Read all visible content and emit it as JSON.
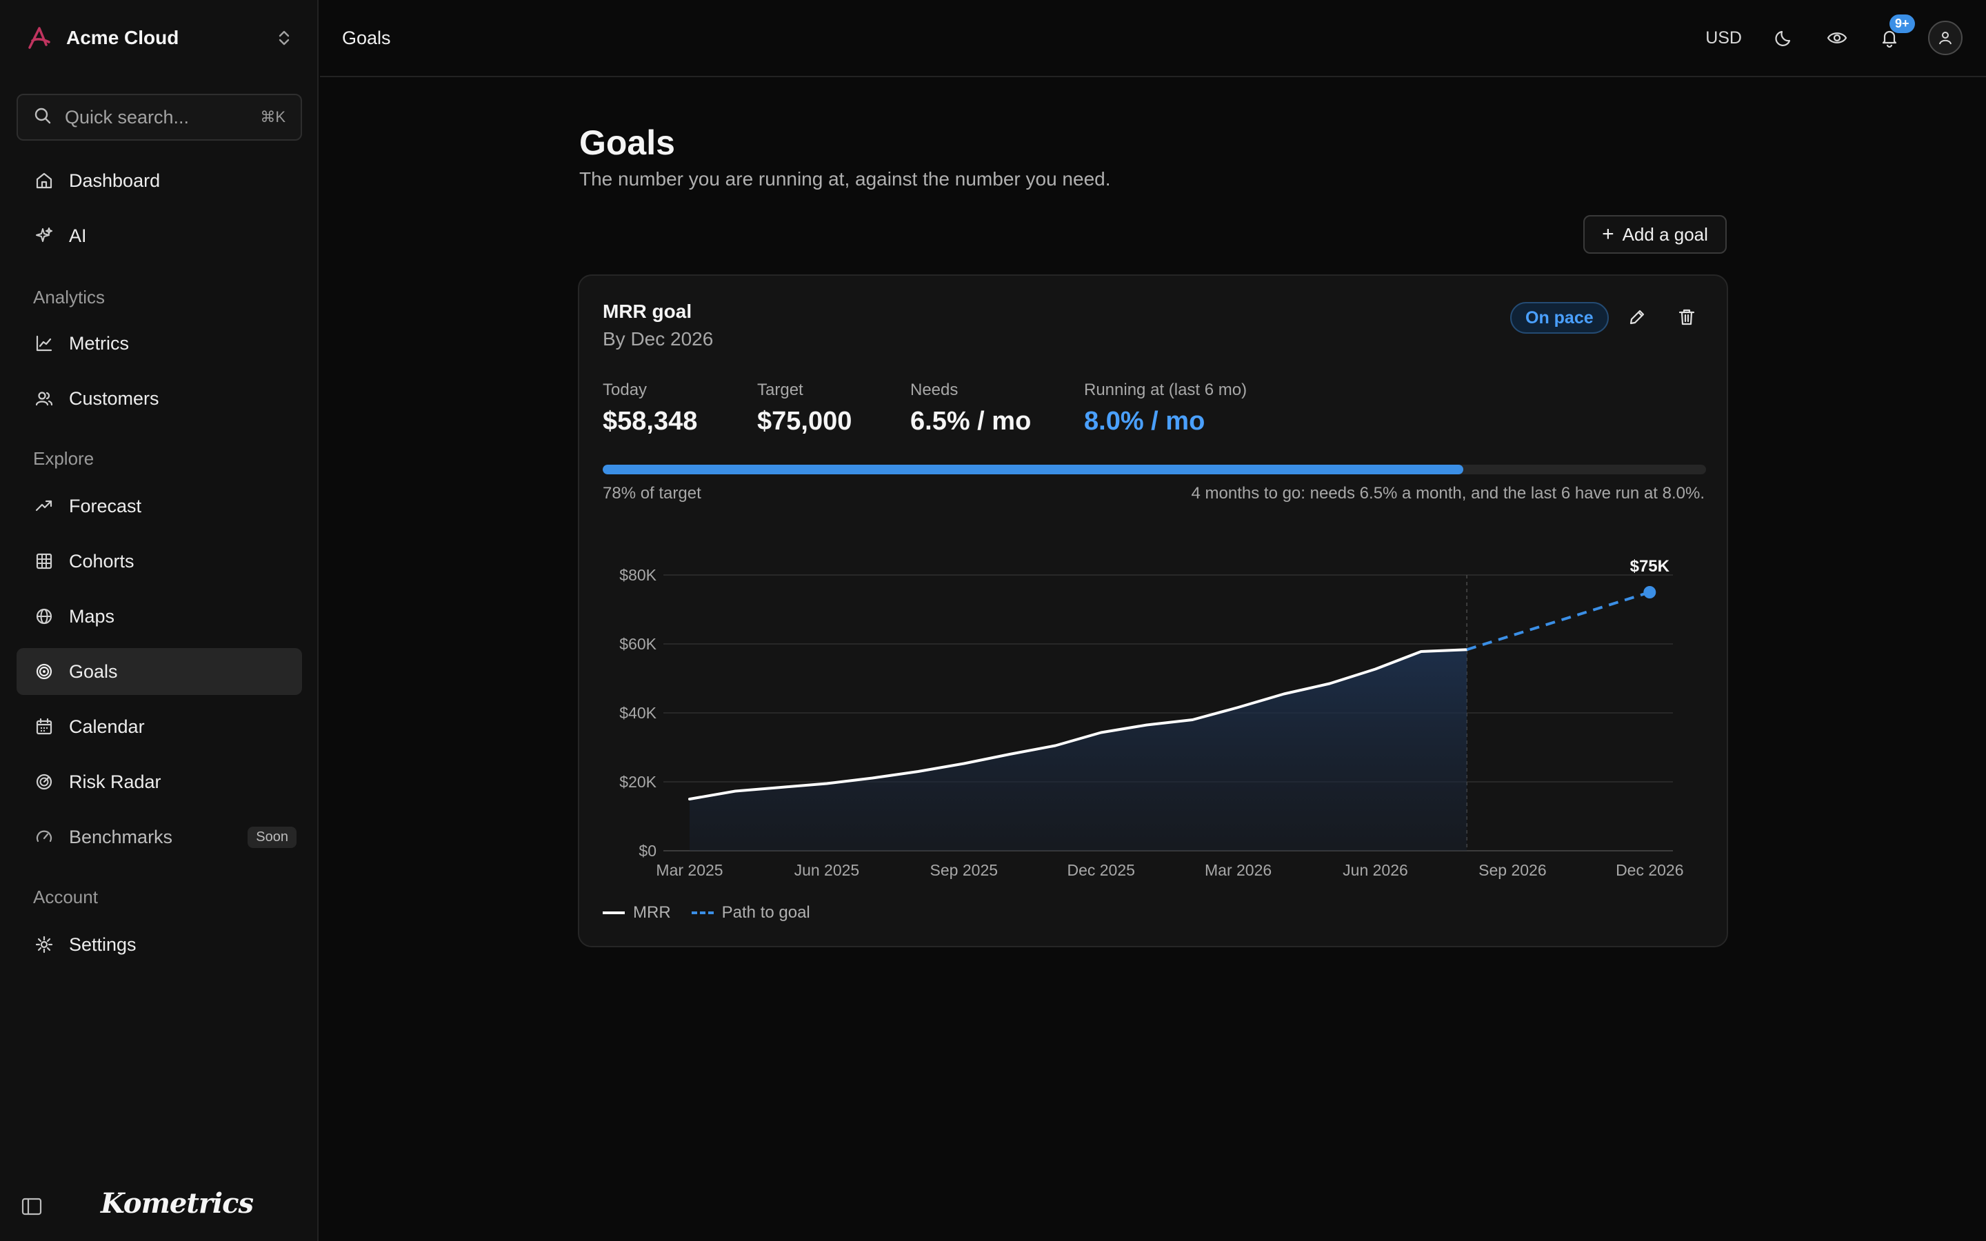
{
  "app": {
    "name": "Acme Cloud",
    "wordmark": "Kometrics"
  },
  "search": {
    "placeholder": "Quick search...",
    "shortcut": "⌘K"
  },
  "sidebar": {
    "top": [
      {
        "label": "Dashboard",
        "icon": "home-icon"
      },
      {
        "label": "AI",
        "icon": "sparkles-icon"
      }
    ],
    "sections": [
      {
        "title": "Analytics",
        "items": [
          {
            "label": "Metrics",
            "icon": "line-chart-icon"
          },
          {
            "label": "Customers",
            "icon": "users-icon"
          }
        ]
      },
      {
        "title": "Explore",
        "items": [
          {
            "label": "Forecast",
            "icon": "trending-up-icon"
          },
          {
            "label": "Cohorts",
            "icon": "grid-icon"
          },
          {
            "label": "Maps",
            "icon": "globe-icon"
          },
          {
            "label": "Goals",
            "icon": "target-icon",
            "active": true
          },
          {
            "label": "Calendar",
            "icon": "calendar-icon"
          },
          {
            "label": "Risk Radar",
            "icon": "radar-icon"
          },
          {
            "label": "Benchmarks",
            "icon": "gauge-icon",
            "badge": "Soon"
          }
        ]
      },
      {
        "title": "Account",
        "items": [
          {
            "label": "Settings",
            "icon": "gear-icon"
          }
        ]
      }
    ]
  },
  "header": {
    "breadcrumb": "Goals",
    "currency": "USD",
    "notifications": "9+"
  },
  "page": {
    "title": "Goals",
    "subtitle": "The number you are running at, against the number you need.",
    "add_label": "Add a goal"
  },
  "goal": {
    "name": "MRR goal",
    "by": "By Dec 2026",
    "status": "On pace",
    "stats": [
      {
        "key": "Today",
        "value": "$58,348"
      },
      {
        "key": "Target",
        "value": "$75,000"
      },
      {
        "key": "Needs",
        "value": "6.5% / mo"
      },
      {
        "key": "Running at (last 6 mo)",
        "value": "8.0% / mo",
        "highlight": true
      }
    ],
    "progress_fraction": 0.78,
    "progress_label": "78% of target",
    "progress_note": "4 months to go: needs 6.5% a month, and the last 6 have run at 8.0%."
  },
  "colors": {
    "accent": "#3b8fe6",
    "accent_text": "#4aa0ff",
    "bg": "#0a0a0a",
    "card": "#141414"
  },
  "chart_data": {
    "type": "line",
    "x_ticks": [
      "Mar 2025",
      "Jun 2025",
      "Sep 2025",
      "Dec 2025",
      "Mar 2026",
      "Jun 2026",
      "Sep 2026",
      "Dec 2026"
    ],
    "y_ticks": [
      "$0",
      "$20K",
      "$40K",
      "$60K",
      "$80K"
    ],
    "ylim": [
      0,
      80000
    ],
    "grid": true,
    "legend_placement": "bottom-left",
    "series": [
      {
        "name": "MRR",
        "x": [
          "2025-03",
          "2025-04",
          "2025-05",
          "2025-06",
          "2025-07",
          "2025-08",
          "2025-09",
          "2025-10",
          "2025-11",
          "2025-12",
          "2026-01",
          "2026-02",
          "2026-03",
          "2026-04",
          "2026-05",
          "2026-06",
          "2026-07",
          "2026-08"
        ],
        "values": [
          15000,
          17300,
          18400,
          19500,
          21100,
          23000,
          25300,
          28000,
          30500,
          34300,
          36500,
          38000,
          41600,
          45500,
          48500,
          52700,
          57800,
          58348
        ]
      },
      {
        "name": "Path to goal",
        "x": [
          "2026-08",
          "2026-12"
        ],
        "values": [
          58348,
          75000
        ],
        "dashed": true
      }
    ],
    "annotations": [
      {
        "text": "$75K",
        "x": "2026-12",
        "y": 75000
      }
    ]
  }
}
